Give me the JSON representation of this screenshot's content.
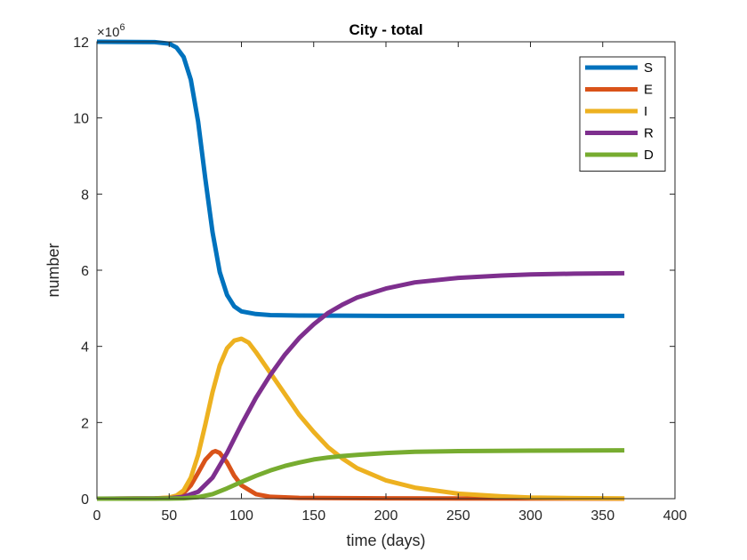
{
  "chart_data": {
    "type": "line",
    "title": "City - total",
    "xlabel": "time (days)",
    "ylabel": "number",
    "y_exponent_base": "×10",
    "y_exponent_power": "6",
    "xlim": [
      0,
      400
    ],
    "ylim": [
      0,
      12
    ],
    "xticks": [
      0,
      50,
      100,
      150,
      200,
      250,
      300,
      350,
      400
    ],
    "yticks": [
      0,
      2,
      4,
      6,
      8,
      10,
      12
    ],
    "grid": false,
    "legend_position": "top-right",
    "series": [
      {
        "name": "S",
        "color": "#0072BD",
        "points": [
          [
            0,
            12
          ],
          [
            40,
            11.99
          ],
          [
            50,
            11.95
          ],
          [
            55,
            11.85
          ],
          [
            60,
            11.6
          ],
          [
            65,
            11.0
          ],
          [
            70,
            9.9
          ],
          [
            75,
            8.4
          ],
          [
            80,
            7.0
          ],
          [
            85,
            5.95
          ],
          [
            90,
            5.35
          ],
          [
            95,
            5.05
          ],
          [
            100,
            4.92
          ],
          [
            110,
            4.85
          ],
          [
            120,
            4.82
          ],
          [
            140,
            4.81
          ],
          [
            200,
            4.8
          ],
          [
            365,
            4.8
          ]
        ]
      },
      {
        "name": "E",
        "color": "#D95319",
        "points": [
          [
            0,
            0
          ],
          [
            40,
            0.005
          ],
          [
            50,
            0.02
          ],
          [
            55,
            0.05
          ],
          [
            60,
            0.15
          ],
          [
            65,
            0.35
          ],
          [
            70,
            0.68
          ],
          [
            75,
            1.02
          ],
          [
            80,
            1.22
          ],
          [
            82,
            1.25
          ],
          [
            85,
            1.2
          ],
          [
            90,
            0.95
          ],
          [
            95,
            0.6
          ],
          [
            100,
            0.35
          ],
          [
            110,
            0.12
          ],
          [
            120,
            0.05
          ],
          [
            140,
            0.02
          ],
          [
            200,
            0.01
          ],
          [
            365,
            0
          ]
        ]
      },
      {
        "name": "I",
        "color": "#EDB120",
        "points": [
          [
            0,
            0
          ],
          [
            40,
            0.005
          ],
          [
            50,
            0.03
          ],
          [
            55,
            0.08
          ],
          [
            60,
            0.22
          ],
          [
            65,
            0.55
          ],
          [
            70,
            1.15
          ],
          [
            75,
            1.95
          ],
          [
            80,
            2.8
          ],
          [
            85,
            3.5
          ],
          [
            90,
            3.95
          ],
          [
            95,
            4.15
          ],
          [
            100,
            4.2
          ],
          [
            105,
            4.1
          ],
          [
            110,
            3.85
          ],
          [
            120,
            3.3
          ],
          [
            130,
            2.75
          ],
          [
            140,
            2.2
          ],
          [
            150,
            1.75
          ],
          [
            160,
            1.35
          ],
          [
            170,
            1.05
          ],
          [
            180,
            0.8
          ],
          [
            200,
            0.48
          ],
          [
            220,
            0.29
          ],
          [
            250,
            0.13
          ],
          [
            280,
            0.06
          ],
          [
            300,
            0.03
          ],
          [
            330,
            0.015
          ],
          [
            365,
            0.005
          ]
        ]
      },
      {
        "name": "R",
        "color": "#7E2F8E",
        "points": [
          [
            0,
            0
          ],
          [
            50,
            0.01
          ],
          [
            60,
            0.05
          ],
          [
            70,
            0.18
          ],
          [
            80,
            0.55
          ],
          [
            90,
            1.2
          ],
          [
            100,
            1.95
          ],
          [
            110,
            2.65
          ],
          [
            120,
            3.25
          ],
          [
            130,
            3.78
          ],
          [
            140,
            4.22
          ],
          [
            150,
            4.58
          ],
          [
            160,
            4.88
          ],
          [
            170,
            5.1
          ],
          [
            180,
            5.28
          ],
          [
            200,
            5.52
          ],
          [
            220,
            5.68
          ],
          [
            250,
            5.8
          ],
          [
            280,
            5.86
          ],
          [
            300,
            5.89
          ],
          [
            330,
            5.91
          ],
          [
            365,
            5.92
          ]
        ]
      },
      {
        "name": "D",
        "color": "#77AC30",
        "points": [
          [
            0,
            0
          ],
          [
            50,
            0.002
          ],
          [
            60,
            0.01
          ],
          [
            70,
            0.04
          ],
          [
            80,
            0.12
          ],
          [
            90,
            0.27
          ],
          [
            100,
            0.44
          ],
          [
            110,
            0.6
          ],
          [
            120,
            0.74
          ],
          [
            130,
            0.86
          ],
          [
            140,
            0.95
          ],
          [
            150,
            1.03
          ],
          [
            160,
            1.08
          ],
          [
            170,
            1.12
          ],
          [
            180,
            1.15
          ],
          [
            200,
            1.2
          ],
          [
            220,
            1.23
          ],
          [
            250,
            1.25
          ],
          [
            300,
            1.26
          ],
          [
            365,
            1.27
          ]
        ]
      }
    ]
  }
}
